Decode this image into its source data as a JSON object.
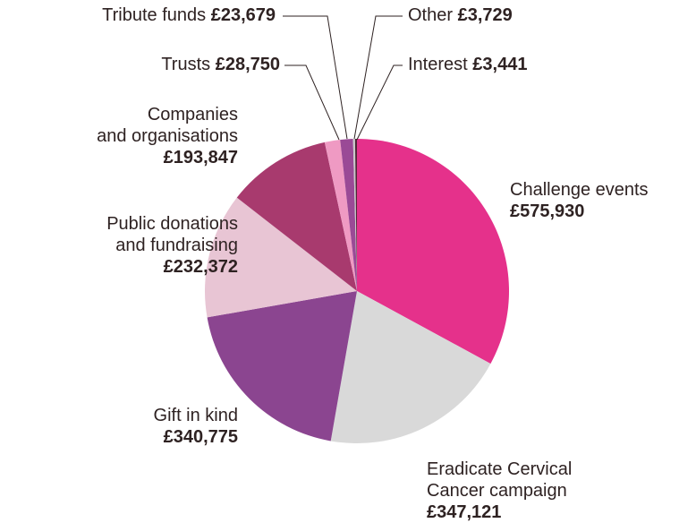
{
  "chart_data": {
    "type": "pie",
    "categories": [
      "Challenge events",
      "Eradicate Cervical\nCancer campaign",
      "Gift in kind",
      "Public donations\nand fundraising",
      "Companies\nand organisations",
      "Trusts",
      "Tribute funds",
      "Other",
      "Interest"
    ],
    "values": [
      575930,
      347121,
      340775,
      232372,
      193847,
      28750,
      23679,
      3729,
      3441
    ],
    "value_labels": [
      "£575,930",
      "£347,121",
      "£340,775",
      "£232,372",
      "£193,847",
      "£28,750",
      "£23,679",
      "£3,729",
      "£3,441"
    ],
    "colors": [
      "#e5318b",
      "#d9d9d9",
      "#8b4590",
      "#e8c5d4",
      "#a83a6e",
      "#ef9ac3",
      "#9a4a96",
      "#c9c9c9",
      "#4e2638"
    ]
  }
}
